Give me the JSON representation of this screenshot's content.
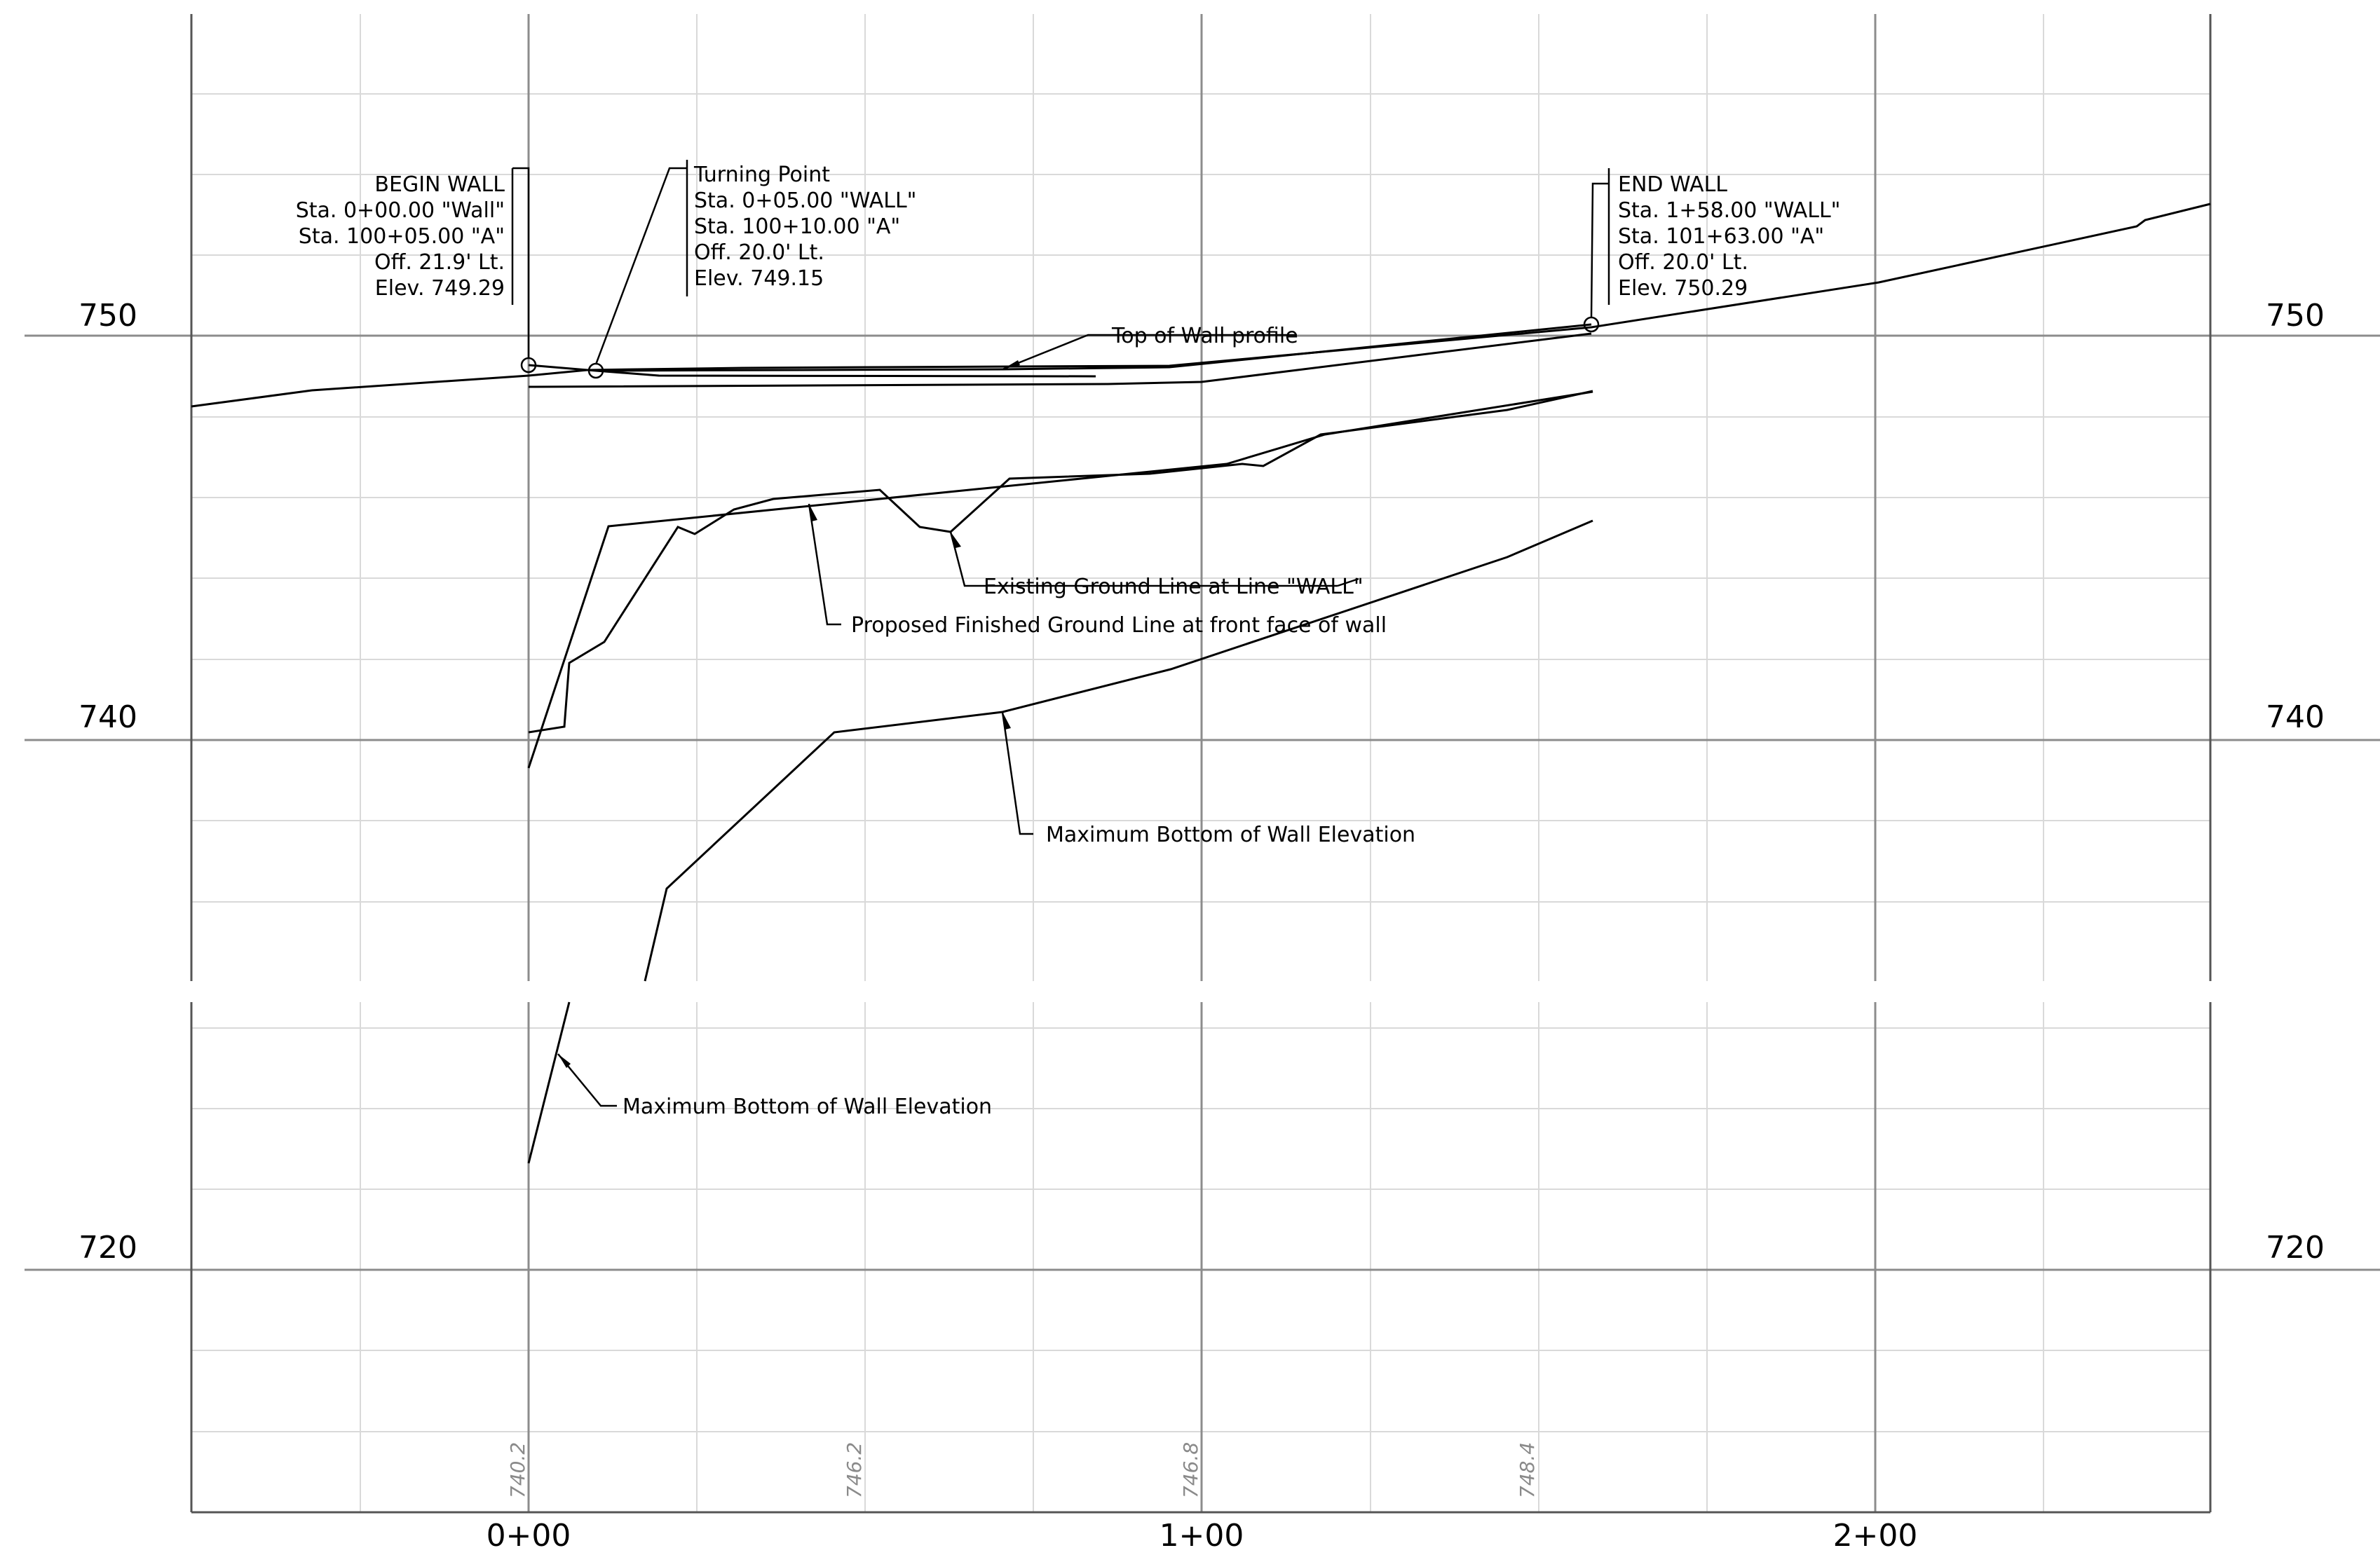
{
  "profile": {
    "elevation_labels": [
      "750",
      "740",
      "720"
    ],
    "station_labels": [
      "0+00",
      "1+00",
      "2+00"
    ],
    "existing_elevations": [
      "740.2",
      "746.2",
      "746.8",
      "748.4"
    ]
  },
  "annotations": {
    "begin_wall": {
      "lines": [
        "BEGIN WALL",
        "Sta. 0+00.00 \"Wall\"",
        "Sta. 100+05.00 \"A\"",
        "Off. 21.9' Lt.",
        "Elev. 749.29"
      ]
    },
    "turning_point": {
      "lines": [
        "Turning Point",
        "Sta. 0+05.00 \"WALL\"",
        "Sta. 100+10.00 \"A\"",
        "Off. 20.0' Lt.",
        "Elev. 749.15"
      ]
    },
    "end_wall": {
      "lines": [
        "END WALL",
        "Sta. 1+58.00 \"WALL\"",
        "Sta. 101+63.00 \"A\"",
        "Off. 20.0' Lt.",
        "Elev. 750.29"
      ]
    },
    "top_of_wall": "Top of Wall profile",
    "existing_ground": "Existing Ground Line at Line \"WALL\"",
    "proposed_ground": "Proposed Finished Ground Line at front face of wall",
    "max_bottom_upper": "Maximum Bottom of Wall Elevation",
    "max_bottom_lower": "Maximum Bottom of Wall Elevation"
  },
  "colors": {
    "line": "#000000",
    "major_grid": "#8c8c8c",
    "minor_grid": "#d9d9d9",
    "elevation_text": "#8a8a8a"
  }
}
